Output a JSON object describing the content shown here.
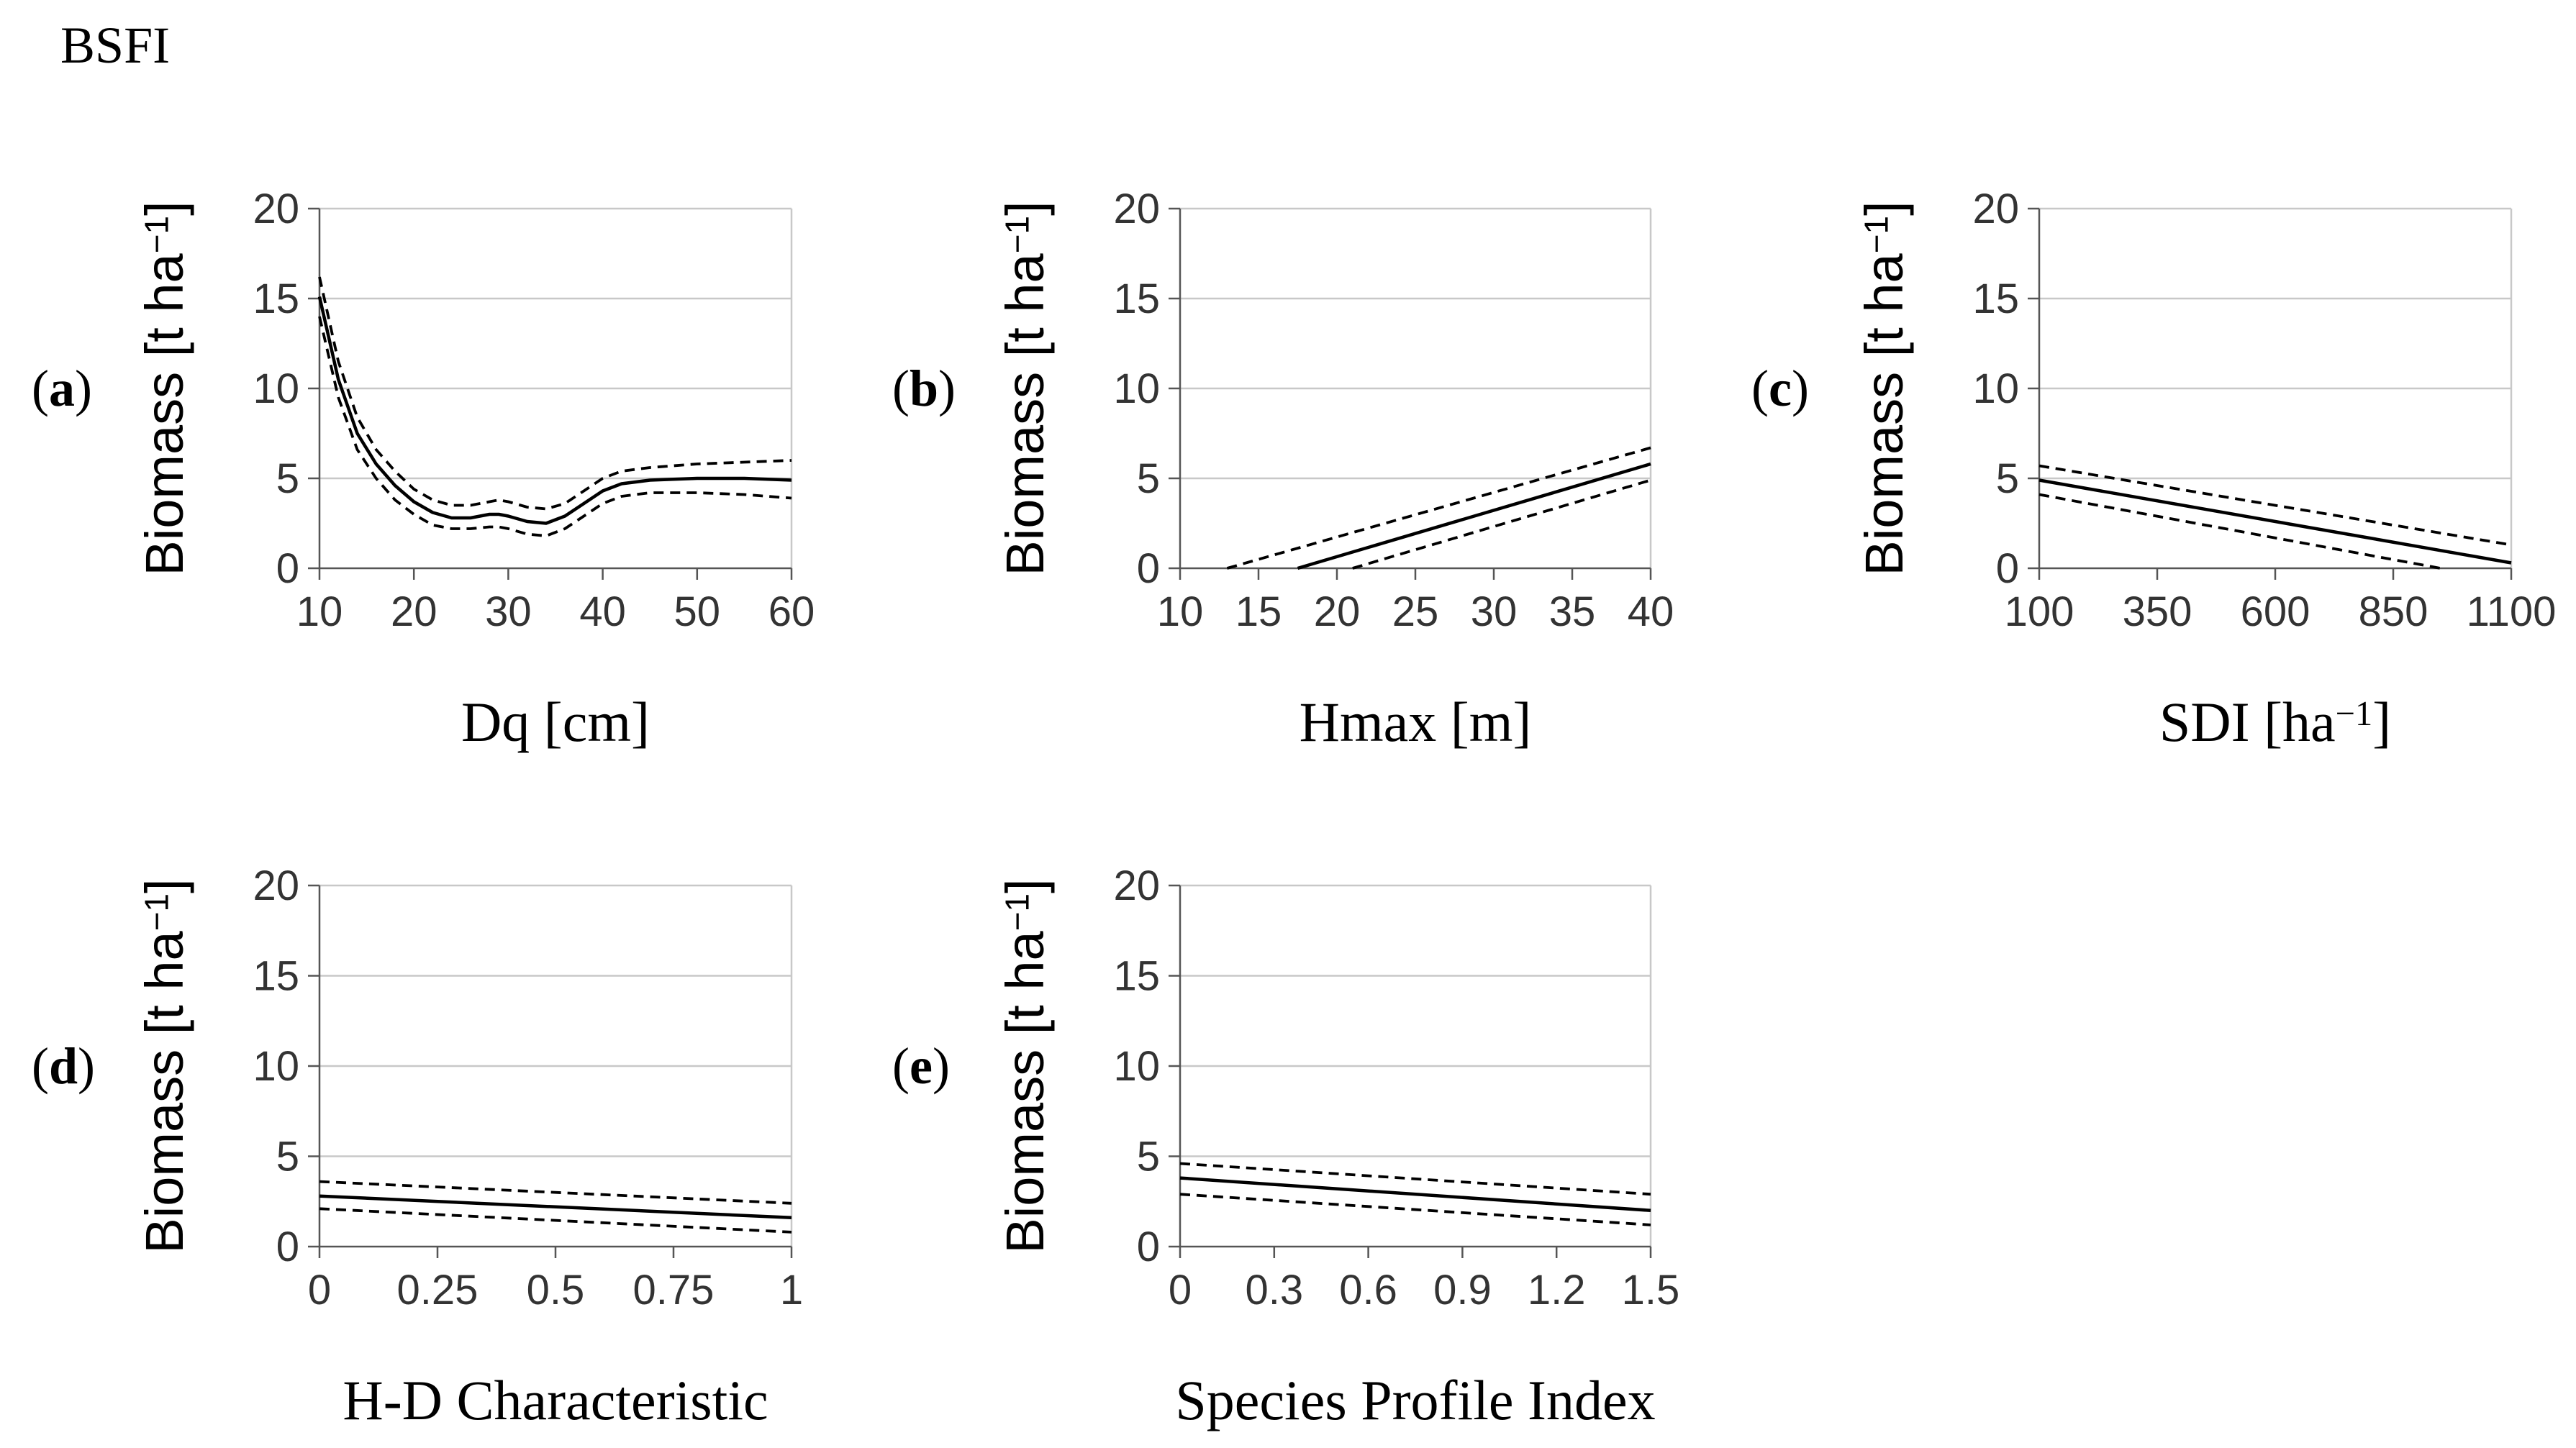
{
  "figure": {
    "title": "BSFI"
  },
  "chart_data": [
    {
      "panel": "a",
      "panel_label": "(a)",
      "type": "line",
      "xlabel": "Dq [cm]",
      "ylabel": "Biomass [t ha⁻¹]",
      "xlim": [
        10,
        60
      ],
      "ylim": [
        0,
        20
      ],
      "xticks": [
        10,
        20,
        30,
        40,
        50,
        60
      ],
      "xtick_labels": [
        "10",
        "20",
        "30",
        "40",
        "50",
        "60"
      ],
      "yticks": [
        0,
        5,
        10,
        15,
        20
      ],
      "ytick_labels": [
        "0",
        "5",
        "10",
        "15",
        "20"
      ],
      "series": [
        {
          "name": "estimate",
          "style": "solid",
          "x": [
            10,
            12,
            14,
            16,
            18,
            20,
            22,
            24,
            26,
            28,
            29,
            30,
            32,
            34,
            36,
            38,
            40,
            42,
            45,
            50,
            55,
            60
          ],
          "y": [
            15.1,
            10.5,
            7.5,
            5.8,
            4.6,
            3.7,
            3.1,
            2.8,
            2.8,
            3.0,
            3.0,
            2.9,
            2.6,
            2.5,
            2.9,
            3.6,
            4.3,
            4.7,
            4.9,
            5.0,
            5.0,
            4.9
          ]
        },
        {
          "name": "upper bound",
          "style": "dashed",
          "x": [
            10,
            12,
            14,
            16,
            18,
            20,
            22,
            24,
            26,
            28,
            29,
            30,
            32,
            34,
            36,
            38,
            40,
            42,
            45,
            50,
            55,
            60
          ],
          "y": [
            16.2,
            11.5,
            8.4,
            6.6,
            5.4,
            4.4,
            3.8,
            3.5,
            3.5,
            3.7,
            3.8,
            3.7,
            3.4,
            3.3,
            3.6,
            4.3,
            5.0,
            5.4,
            5.6,
            5.8,
            5.9,
            6.0
          ]
        },
        {
          "name": "lower bound",
          "style": "dashed",
          "x": [
            10,
            12,
            14,
            16,
            18,
            20,
            22,
            24,
            26,
            28,
            29,
            30,
            32,
            34,
            36,
            38,
            40,
            42,
            45,
            50,
            55,
            60
          ],
          "y": [
            14.0,
            9.5,
            6.6,
            5.0,
            3.8,
            3.0,
            2.4,
            2.2,
            2.2,
            2.3,
            2.3,
            2.2,
            1.9,
            1.8,
            2.2,
            2.9,
            3.6,
            4.0,
            4.2,
            4.2,
            4.1,
            3.9
          ]
        }
      ]
    },
    {
      "panel": "b",
      "panel_label": "(b)",
      "type": "line",
      "xlabel": "Hmax [m]",
      "ylabel": "Biomass [t ha⁻¹]",
      "xlim": [
        10,
        40
      ],
      "ylim": [
        0,
        20
      ],
      "xticks": [
        10,
        15,
        20,
        25,
        30,
        35,
        40
      ],
      "xtick_labels": [
        "10",
        "15",
        "20",
        "25",
        "30",
        "35",
        "40"
      ],
      "yticks": [
        0,
        5,
        10,
        15,
        20
      ],
      "ytick_labels": [
        "0",
        "5",
        "10",
        "15",
        "20"
      ],
      "series": [
        {
          "name": "estimate",
          "style": "solid",
          "x": [
            17.5,
            40
          ],
          "y": [
            0,
            5.8
          ]
        },
        {
          "name": "upper bound",
          "style": "dashed",
          "x": [
            13.0,
            40
          ],
          "y": [
            0,
            6.7
          ]
        },
        {
          "name": "lower bound",
          "style": "dashed",
          "x": [
            21.0,
            40
          ],
          "y": [
            0,
            4.9
          ]
        }
      ]
    },
    {
      "panel": "c",
      "panel_label": "(c)",
      "type": "line",
      "xlabel": "SDI [ha⁻¹]",
      "ylabel": "Biomass [t ha⁻¹]",
      "xlim": [
        100,
        1100
      ],
      "ylim": [
        0,
        20
      ],
      "xticks": [
        100,
        350,
        600,
        850,
        1100
      ],
      "xtick_labels": [
        "100",
        "350",
        "600",
        "850",
        "1100"
      ],
      "yticks": [
        0,
        5,
        10,
        15,
        20
      ],
      "ytick_labels": [
        "0",
        "5",
        "10",
        "15",
        "20"
      ],
      "series": [
        {
          "name": "estimate",
          "style": "solid",
          "x": [
            100,
            1100
          ],
          "y": [
            4.9,
            0.3
          ]
        },
        {
          "name": "upper bound",
          "style": "dashed",
          "x": [
            100,
            1100
          ],
          "y": [
            5.7,
            1.3
          ]
        },
        {
          "name": "lower bound",
          "style": "dashed",
          "x": [
            100,
            950
          ],
          "y": [
            4.1,
            0
          ]
        }
      ]
    },
    {
      "panel": "d",
      "panel_label": "(d)",
      "type": "line",
      "xlabel": "H-D Characteristic",
      "ylabel": "Biomass [t ha⁻¹]",
      "xlim": [
        0,
        1
      ],
      "ylim": [
        0,
        20
      ],
      "xticks": [
        0,
        0.25,
        0.5,
        0.75,
        1
      ],
      "xtick_labels": [
        "0",
        "0.25",
        "0.5",
        "0.75",
        "1"
      ],
      "yticks": [
        0,
        5,
        10,
        15,
        20
      ],
      "ytick_labels": [
        "0",
        "5",
        "10",
        "15",
        "20"
      ],
      "series": [
        {
          "name": "estimate",
          "style": "solid",
          "x": [
            0,
            1
          ],
          "y": [
            2.8,
            1.6
          ]
        },
        {
          "name": "upper bound",
          "style": "dashed",
          "x": [
            0,
            1
          ],
          "y": [
            3.6,
            2.4
          ]
        },
        {
          "name": "lower bound",
          "style": "dashed",
          "x": [
            0,
            1
          ],
          "y": [
            2.1,
            0.8
          ]
        }
      ]
    },
    {
      "panel": "e",
      "panel_label": "(e)",
      "type": "line",
      "xlabel": "Species Profile Index",
      "ylabel": "Biomass [t ha⁻¹]",
      "xlim": [
        0,
        1.5
      ],
      "ylim": [
        0,
        20
      ],
      "xticks": [
        0,
        0.3,
        0.6,
        0.9,
        1.2,
        1.5
      ],
      "xtick_labels": [
        "0",
        "0.3",
        "0.6",
        "0.9",
        "1.2",
        "1.5"
      ],
      "yticks": [
        0,
        5,
        10,
        15,
        20
      ],
      "ytick_labels": [
        "0",
        "5",
        "10",
        "15",
        "20"
      ],
      "series": [
        {
          "name": "estimate",
          "style": "solid",
          "x": [
            0,
            1.5
          ],
          "y": [
            3.8,
            2.0
          ]
        },
        {
          "name": "upper bound",
          "style": "dashed",
          "x": [
            0,
            1.5
          ],
          "y": [
            4.6,
            2.9
          ]
        },
        {
          "name": "lower bound",
          "style": "dashed",
          "x": [
            0,
            1.5
          ],
          "y": [
            2.9,
            1.2
          ]
        }
      ]
    }
  ]
}
